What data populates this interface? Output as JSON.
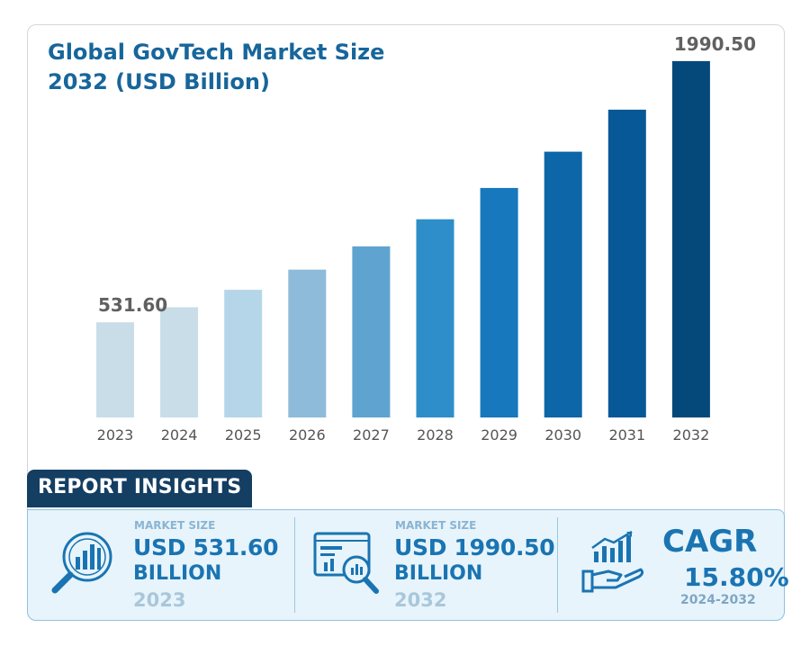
{
  "title_line1": "Global GovTech Market Size",
  "title_line2": "2032 (USD Billion)",
  "colors": {
    "title": "#17669b",
    "bars": [
      "#c9dde9",
      "#c9dde9",
      "#b5d6e9",
      "#8ebbd9",
      "#5fa4d0",
      "#2e8ec9",
      "#1778bd",
      "#0d66a8",
      "#075896",
      "#05497a"
    ]
  },
  "chart_data": {
    "type": "bar",
    "categories": [
      "2023",
      "2024",
      "2025",
      "2026",
      "2027",
      "2028",
      "2029",
      "2030",
      "2031",
      "2032"
    ],
    "values": [
      531.6,
      615.6,
      712.9,
      825.5,
      955.9,
      1106.9,
      1281.8,
      1484.4,
      1718.9,
      1990.5
    ],
    "data_labels": [
      {
        "category": "2023",
        "text": "531.60"
      },
      {
        "category": "2032",
        "text": "1990.50"
      }
    ],
    "title": "Global GovTech Market Size 2032 (USD Billion)",
    "ylim": [
      0,
      2030
    ],
    "grid": false,
    "legend": "none"
  },
  "insights": {
    "header": "REPORT INSIGHTS",
    "items": [
      {
        "label": "MARKET SIZE",
        "value": "USD 531.60",
        "unit": "BILLION",
        "year": "2023",
        "icon": "market-size-search-chart-icon"
      },
      {
        "label": "MARKET SIZE",
        "value": "USD 1990.50",
        "unit": "BILLION",
        "year": "2032",
        "icon": "analytics-dashboard-magnifier-icon"
      }
    ],
    "cagr": {
      "title": "CAGR",
      "value": "15.80%",
      "range": "2024-2032",
      "icon": "growth-chart-hand-icon"
    }
  }
}
